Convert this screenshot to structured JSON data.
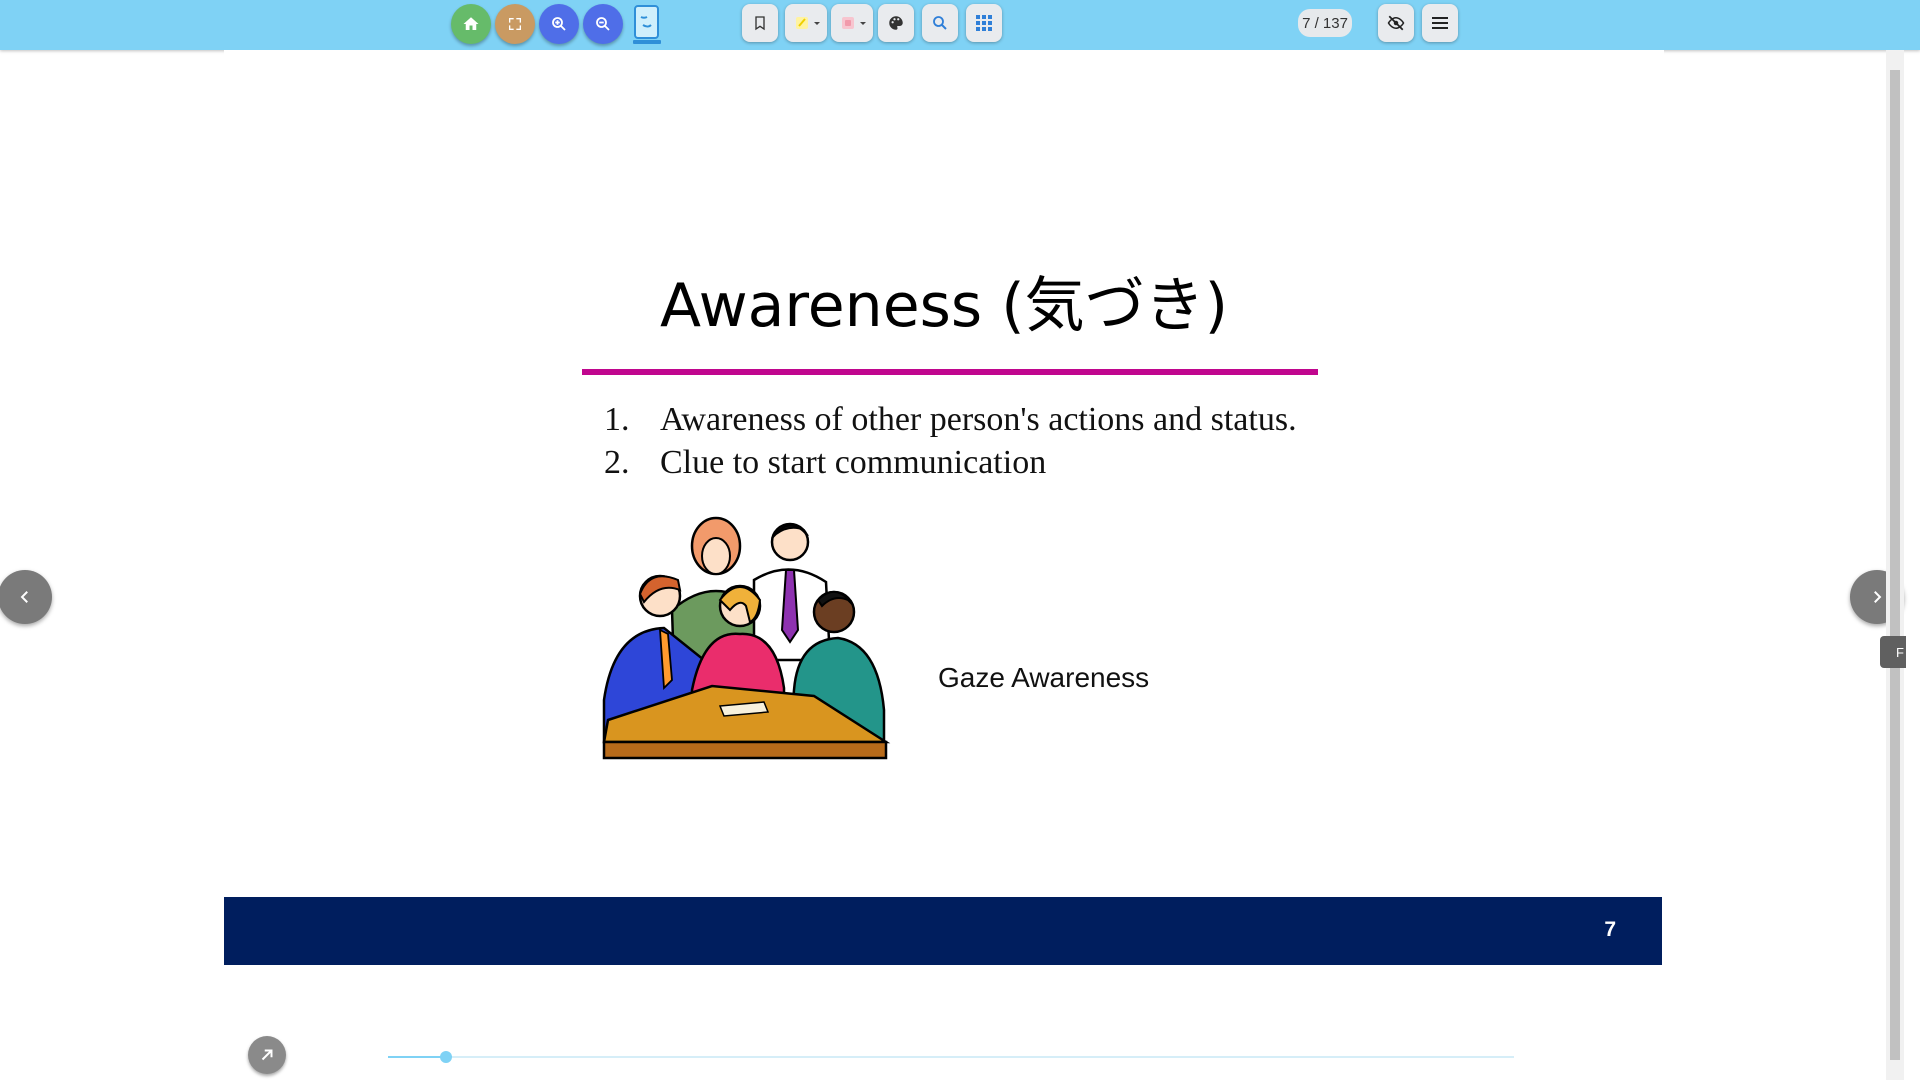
{
  "toolbar": {
    "buttons": [
      {
        "name": "home-button",
        "icon": "home-icon",
        "color": "#66bb6a"
      },
      {
        "name": "fullscreen-button",
        "icon": "fullscreen-icon",
        "color": "#c99a62"
      },
      {
        "name": "zoom-in-button",
        "icon": "zoom-in-icon",
        "color": "#4f6ee8"
      },
      {
        "name": "zoom-out-button",
        "icon": "zoom-out-icon",
        "color": "#4f6ee8"
      }
    ],
    "tools": [
      "bookmark-icon",
      "highlighter-icon",
      "eraser-icon",
      "palette-icon",
      "search-icon",
      "grid-icon"
    ],
    "page_counter": "7 / 137",
    "right_tools": [
      "eye-off-icon",
      "menu-icon"
    ]
  },
  "slide": {
    "title": "Awareness (気づき)",
    "items": [
      {
        "num": "1.",
        "text": "Awareness of other person's actions and status."
      },
      {
        "num": "2.",
        "text": "Clue to start communication"
      }
    ],
    "caption": "Gaze Awareness",
    "slide_number": "7",
    "accent_color": "#c0068e",
    "footer_color": "#001e5e"
  },
  "side_tab": {
    "label": "F"
  },
  "progress": {
    "current": 7,
    "total": 137
  }
}
